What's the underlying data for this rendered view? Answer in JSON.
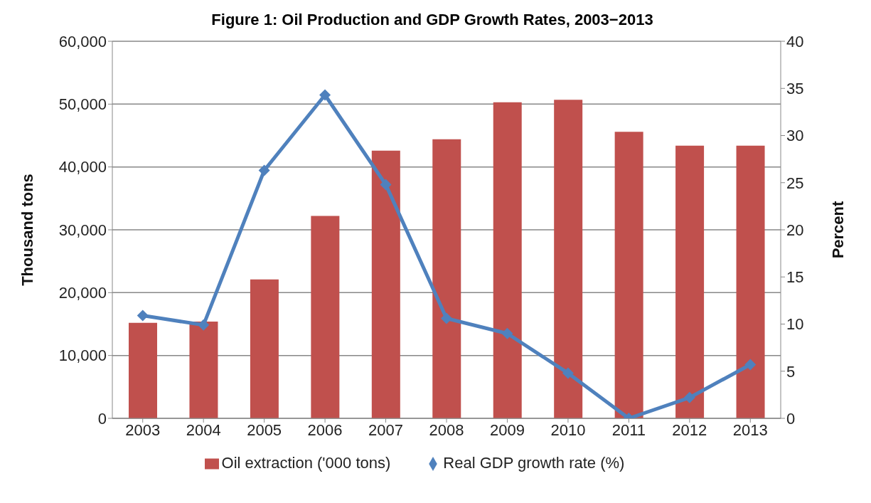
{
  "chart_data": {
    "type": "bar",
    "title": "Figure 1: Oil Production and GDP Growth Rates, 2003−2013",
    "ylabel": "Thousand tons",
    "y2label": "Percent",
    "categories": [
      "2003",
      "2004",
      "2005",
      "2006",
      "2007",
      "2008",
      "2009",
      "2010",
      "2011",
      "2012",
      "2013"
    ],
    "series": [
      {
        "name": "Oil extraction ('000 tons)",
        "color": "#c0504d",
        "values": [
          15200,
          15400,
          22100,
          32200,
          42600,
          44400,
          50300,
          50700,
          45600,
          43400,
          43400
        ]
      },
      {
        "name": "Real GDP growth rate (%)",
        "type": "line",
        "axis": "y2",
        "color": "#4f81bd",
        "marker": "diamond",
        "values": [
          10.9,
          9.9,
          26.3,
          34.3,
          24.8,
          10.6,
          9.0,
          4.8,
          0,
          2.2,
          5.7
        ]
      }
    ],
    "ylim": [
      0,
      60000
    ],
    "yticks": [
      0,
      {
        "value": 10000,
        "label": "10,000"
      },
      {
        "value": 20000,
        "label": "20,000"
      },
      {
        "value": 30000,
        "label": "30,000"
      },
      {
        "value": 40000,
        "label": "40,000"
      },
      {
        "value": 50000,
        "label": "50,000"
      },
      {
        "value": 60000,
        "label": "60,000"
      }
    ],
    "y2lim": [
      0,
      40
    ],
    "y2ticks": [
      0,
      5,
      10,
      15,
      20,
      25,
      30,
      35,
      40
    ],
    "grid": "y",
    "legend": "bottom"
  }
}
